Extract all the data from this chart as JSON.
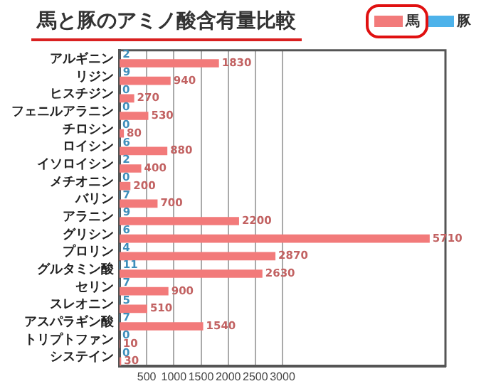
{
  "chart_data": {
    "type": "bar",
    "orientation": "horizontal",
    "title": "馬と豚のアミノ酸含有量比較",
    "categories": [
      "アルギニン",
      "リジン",
      "ヒスチジン",
      "フェニルアラニン",
      "チロシン",
      "ロイシン",
      "イソロイシン",
      "メチオニン",
      "バリン",
      "アラニン",
      "グリシン",
      "プロリン",
      "グルタミン酸",
      "セリン",
      "スレオニン",
      "アスパラギン酸",
      "トリプトファン",
      "システイン"
    ],
    "series": [
      {
        "name": "豚",
        "color": "#4db2ea",
        "values": [
          2,
          9,
          0,
          0,
          0,
          6,
          2,
          0,
          7,
          9,
          6,
          4,
          11,
          7,
          5,
          7,
          0,
          0
        ]
      },
      {
        "name": "馬",
        "color": "#f27a7a",
        "values": [
          1830,
          940,
          270,
          530,
          80,
          880,
          400,
          200,
          700,
          2200,
          5710,
          2870,
          2630,
          900,
          510,
          1540,
          10,
          30
        ]
      }
    ],
    "xlim": [
      0,
      6000
    ],
    "xticks": [
      500,
      1000,
      1500,
      2000,
      2500,
      3000
    ],
    "data_labels": true,
    "grid": "x",
    "legend": "top right"
  }
}
